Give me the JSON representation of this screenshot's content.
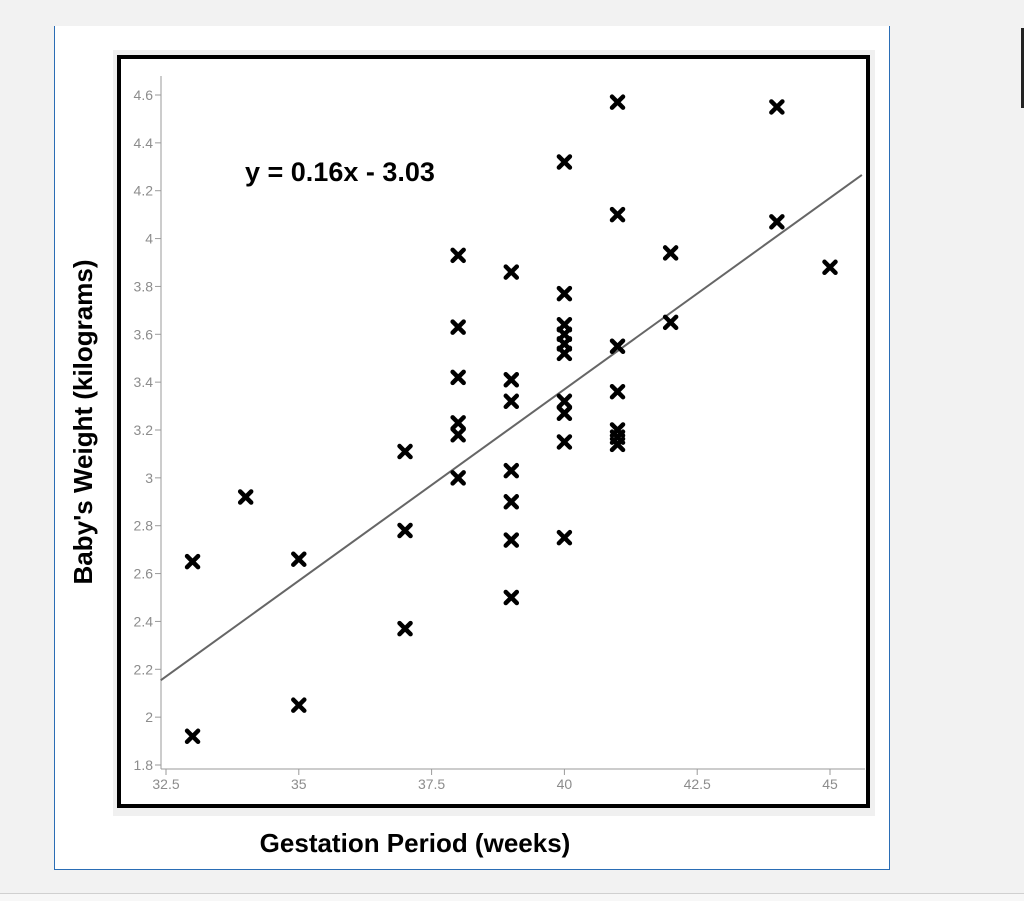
{
  "chart_data": {
    "type": "scatter",
    "xlabel": "Gestation Period (weeks)",
    "ylabel": "Baby's Weight (kilograms)",
    "annotation": "y = 0.16x - 3.03",
    "xlim": [
      32.5,
      45.5
    ],
    "ylim": [
      1.8,
      4.7
    ],
    "xticks": [
      32.5,
      35,
      37.5,
      40,
      42.5,
      45
    ],
    "xtick_labels": [
      "32.5",
      "35",
      "37.5",
      "40",
      "42.5",
      "45"
    ],
    "yticks": [
      1.8,
      2,
      2.2,
      2.4,
      2.6,
      2.8,
      3,
      3.2,
      3.4,
      3.6,
      3.8,
      4,
      4.2,
      4.4,
      4.6
    ],
    "ytick_labels": [
      "1.8",
      "2",
      "2.2",
      "2.4",
      "2.6",
      "2.8",
      "3",
      "3.2",
      "3.4",
      "3.6",
      "3.8",
      "4",
      "4.2",
      "4.4",
      "4.6"
    ],
    "grid": false,
    "marker": "x",
    "trendline": {
      "slope": 0.16,
      "intercept": -3.03,
      "color": "#666666"
    },
    "points": [
      {
        "x": 33,
        "y": 2.65
      },
      {
        "x": 33,
        "y": 1.92
      },
      {
        "x": 34,
        "y": 2.92
      },
      {
        "x": 35,
        "y": 2.66
      },
      {
        "x": 35,
        "y": 2.05
      },
      {
        "x": 37,
        "y": 3.11
      },
      {
        "x": 37,
        "y": 2.78
      },
      {
        "x": 37,
        "y": 2.37
      },
      {
        "x": 38,
        "y": 3.93
      },
      {
        "x": 38,
        "y": 3.63
      },
      {
        "x": 38,
        "y": 3.42
      },
      {
        "x": 38,
        "y": 3.23
      },
      {
        "x": 38,
        "y": 3.18
      },
      {
        "x": 38,
        "y": 3.0
      },
      {
        "x": 39,
        "y": 3.86
      },
      {
        "x": 39,
        "y": 3.41
      },
      {
        "x": 39,
        "y": 3.32
      },
      {
        "x": 39,
        "y": 3.03
      },
      {
        "x": 39,
        "y": 2.9
      },
      {
        "x": 39,
        "y": 2.74
      },
      {
        "x": 39,
        "y": 2.5
      },
      {
        "x": 40,
        "y": 4.32
      },
      {
        "x": 40,
        "y": 3.77
      },
      {
        "x": 40,
        "y": 3.64
      },
      {
        "x": 40,
        "y": 3.6
      },
      {
        "x": 40,
        "y": 3.56
      },
      {
        "x": 40,
        "y": 3.52
      },
      {
        "x": 40,
        "y": 3.32
      },
      {
        "x": 40,
        "y": 3.27
      },
      {
        "x": 40,
        "y": 3.15
      },
      {
        "x": 40,
        "y": 2.75
      },
      {
        "x": 41,
        "y": 4.57
      },
      {
        "x": 41,
        "y": 4.1
      },
      {
        "x": 41,
        "y": 3.55
      },
      {
        "x": 41,
        "y": 3.36
      },
      {
        "x": 41,
        "y": 3.2
      },
      {
        "x": 41,
        "y": 3.17
      },
      {
        "x": 41,
        "y": 3.14
      },
      {
        "x": 42,
        "y": 3.94
      },
      {
        "x": 42,
        "y": 3.65
      },
      {
        "x": 44,
        "y": 4.55
      },
      {
        "x": 44,
        "y": 4.07
      },
      {
        "x": 45,
        "y": 3.88
      }
    ]
  }
}
